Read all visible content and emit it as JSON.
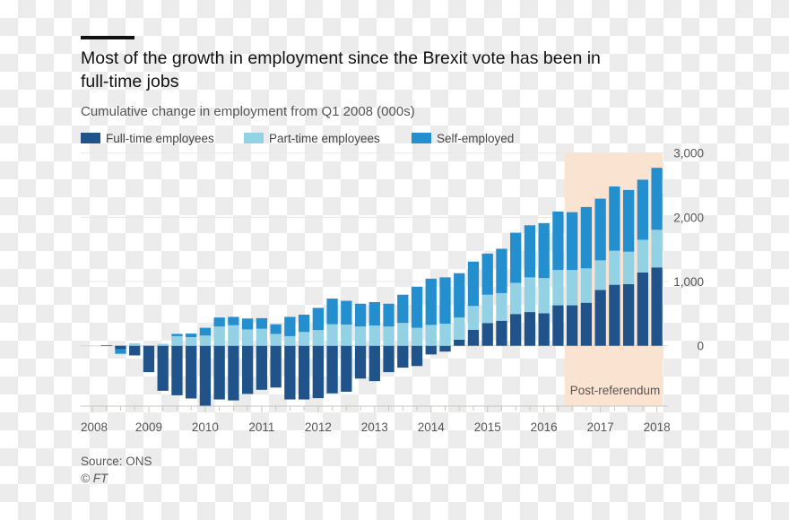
{
  "chart_data": {
    "type": "bar",
    "stacked": true,
    "title": "Most of the growth in employment since the Brexit vote has been in full-time jobs",
    "title_lines": [
      "Most of the growth in employment since the Brexit vote has been in",
      "full-time jobs"
    ],
    "subtitle": "Cumulative change in employment from Q1 2008 (000s)",
    "x_tick_labels": [
      "2008",
      "2009",
      "2010",
      "2011",
      "2012",
      "2013",
      "2014",
      "2015",
      "2016",
      "2017",
      "2018"
    ],
    "x_range": [
      "Q1 2008",
      "Q1 2018"
    ],
    "y_ticks": [
      0,
      1000,
      2000,
      3000
    ],
    "y_tick_labels": [
      "0",
      "1,000",
      "2,000",
      "3,000"
    ],
    "ylim": [
      -1000,
      3000
    ],
    "grid": true,
    "legend_position": "top-left",
    "categories": [
      "Q1 2008",
      "Q2 2008",
      "Q3 2008",
      "Q4 2008",
      "Q1 2009",
      "Q2 2009",
      "Q3 2009",
      "Q4 2009",
      "Q1 2010",
      "Q2 2010",
      "Q3 2010",
      "Q4 2010",
      "Q1 2011",
      "Q2 2011",
      "Q3 2011",
      "Q4 2011",
      "Q1 2012",
      "Q2 2012",
      "Q3 2012",
      "Q4 2012",
      "Q1 2013",
      "Q2 2013",
      "Q3 2013",
      "Q4 2013",
      "Q1 2014",
      "Q2 2014",
      "Q3 2014",
      "Q4 2014",
      "Q1 2015",
      "Q2 2015",
      "Q3 2015",
      "Q4 2015",
      "Q1 2016",
      "Q2 2016",
      "Q3 2016",
      "Q4 2016",
      "Q1 2017",
      "Q2 2017",
      "Q3 2017",
      "Q4 2017",
      "Q1 2018"
    ],
    "series": [
      {
        "name": "Full-time employees",
        "color": "#1f538a",
        "values": [
          0,
          10,
          -55,
          -150,
          -410,
          -700,
          -770,
          -820,
          -935,
          -835,
          -850,
          -750,
          -685,
          -650,
          -835,
          -835,
          -815,
          -740,
          -715,
          -510,
          -550,
          -410,
          -340,
          -315,
          -135,
          -90,
          95,
          250,
          355,
          390,
          495,
          525,
          505,
          630,
          630,
          670,
          870,
          950,
          960,
          1140,
          1220
        ]
      },
      {
        "name": "Part-time employees",
        "color": "#93d1e4",
        "values": [
          0,
          0,
          0,
          40,
          0,
          30,
          150,
          135,
          160,
          300,
          320,
          255,
          265,
          185,
          150,
          215,
          245,
          335,
          330,
          300,
          315,
          300,
          355,
          280,
          325,
          345,
          345,
          370,
          440,
          430,
          485,
          540,
          550,
          550,
          550,
          535,
          460,
          530,
          505,
          510,
          585
        ]
      },
      {
        "name": "Self-employed",
        "color": "#238fcf",
        "values": [
          0,
          0,
          -70,
          0,
          0,
          0,
          35,
          55,
          120,
          140,
          130,
          170,
          165,
          150,
          300,
          270,
          345,
          400,
          370,
          355,
          365,
          355,
          440,
          640,
          720,
          720,
          690,
          690,
          640,
          690,
          780,
          810,
          855,
          910,
          900,
          955,
          960,
          1000,
          960,
          935,
          965
        ]
      }
    ],
    "annotation": {
      "label": "Post-referendum",
      "start": "Q3 2016",
      "end": "Q1 2018",
      "color": "#fbe3d2"
    },
    "source": "Source: ONS",
    "credit": "© FT"
  }
}
